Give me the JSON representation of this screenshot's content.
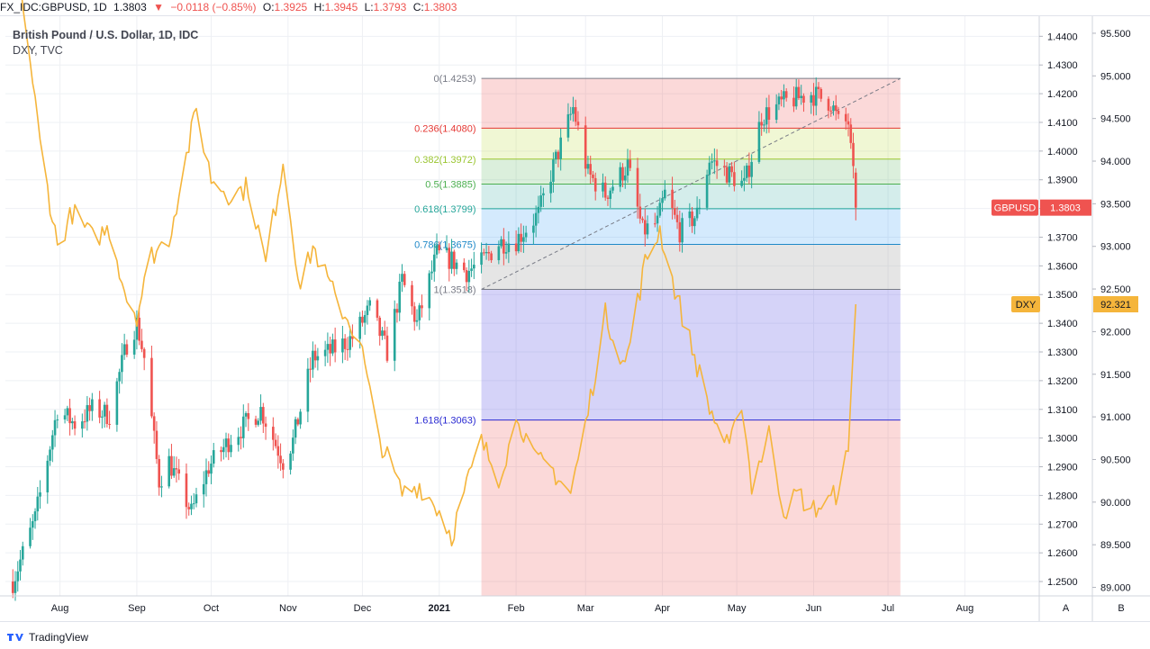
{
  "header": {
    "symbol": "FX_IDC:GBPUSD, 1D",
    "price": "1.3803",
    "change": "−0.0118 (−0.85%)",
    "open_label": "O:",
    "open": "1.3925",
    "high_label": "H:",
    "high": "1.3945",
    "low_label": "L:",
    "low": "1.3793",
    "close_label": "C:",
    "close": "1.3803"
  },
  "legend": {
    "line1": "British Pound / U.S. Dollar, 1D, IDC",
    "line2": "DXY, TVC"
  },
  "footer": {
    "brand": "TradingView"
  },
  "colors": {
    "up": "#26a69a",
    "down": "#ef5350",
    "dxy": "#f5b53b",
    "grid": "#eef0f4",
    "gbp_tag": "#ef5350",
    "dxy_tag": "#f5b53b"
  },
  "chart_data": {
    "type": "candlestick+line",
    "x_range": [
      "2020-07-10",
      "2021-08-31"
    ],
    "x_ticks": [
      {
        "date": "2020-08-01",
        "label": "Aug"
      },
      {
        "date": "2020-09-01",
        "label": "Sep"
      },
      {
        "date": "2020-10-01",
        "label": "Oct"
      },
      {
        "date": "2020-11-01",
        "label": "Nov"
      },
      {
        "date": "2020-12-01",
        "label": "Dec"
      },
      {
        "date": "2021-01-01",
        "label": "2021"
      },
      {
        "date": "2021-02-01",
        "label": "Feb"
      },
      {
        "date": "2021-03-01",
        "label": "Mar"
      },
      {
        "date": "2021-04-01",
        "label": "Apr"
      },
      {
        "date": "2021-05-01",
        "label": "May"
      },
      {
        "date": "2021-06-01",
        "label": "Jun"
      },
      {
        "date": "2021-07-01",
        "label": "Jul"
      },
      {
        "date": "2021-08-01",
        "label": "Aug"
      }
    ],
    "left_axis": {
      "series": "GBPUSD",
      "range": [
        1.245,
        1.447
      ],
      "ticks": [
        "1.2500",
        "1.2600",
        "1.2700",
        "1.2800",
        "1.2900",
        "1.3000",
        "1.3100",
        "1.3200",
        "1.3300",
        "1.3400",
        "1.3500",
        "1.3600",
        "1.3700",
        "1.3800",
        "1.3900",
        "1.4000",
        "1.4100",
        "1.4200",
        "1.4300",
        "1.4400"
      ],
      "scale_label": "A"
    },
    "right_axis": {
      "series": "DXY",
      "range": [
        88.9,
        95.7
      ],
      "ticks": [
        "89.000",
        "89.500",
        "90.000",
        "90.500",
        "91.000",
        "91.500",
        "92.000",
        "92.500",
        "93.000",
        "93.500",
        "94.000",
        "94.500",
        "95.000",
        "95.500"
      ],
      "scale_label": "B"
    },
    "gbpusd_anchors": [
      [
        "2020-07-13",
        1.25
      ],
      [
        "2020-07-22",
        1.272
      ],
      [
        "2020-07-31",
        1.31
      ],
      [
        "2020-08-07",
        1.305
      ],
      [
        "2020-08-14",
        1.31
      ],
      [
        "2020-08-21",
        1.308
      ],
      [
        "2020-08-28",
        1.333
      ],
      [
        "2020-09-01",
        1.34
      ],
      [
        "2020-09-04",
        1.328
      ],
      [
        "2020-09-10",
        1.285
      ],
      [
        "2020-09-14",
        1.292
      ],
      [
        "2020-09-23",
        1.274
      ],
      [
        "2020-09-30",
        1.29
      ],
      [
        "2020-10-09",
        1.3
      ],
      [
        "2020-10-21",
        1.31
      ],
      [
        "2020-10-30",
        1.292
      ],
      [
        "2020-11-03",
        1.299
      ],
      [
        "2020-11-11",
        1.328
      ],
      [
        "2020-11-18",
        1.33
      ],
      [
        "2020-11-27",
        1.335
      ],
      [
        "2020-12-04",
        1.345
      ],
      [
        "2020-12-11",
        1.33
      ],
      [
        "2020-12-17",
        1.355
      ],
      [
        "2020-12-23",
        1.34
      ],
      [
        "2020-12-31",
        1.364
      ],
      [
        "2021-01-06",
        1.362
      ],
      [
        "2021-01-12",
        1.358
      ],
      [
        "2021-01-18",
        1.361
      ],
      [
        "2021-01-25",
        1.368
      ],
      [
        "2021-02-01",
        1.369
      ],
      [
        "2021-02-10",
        1.378
      ],
      [
        "2021-02-15",
        1.392
      ],
      [
        "2021-02-24",
        1.415
      ],
      [
        "2021-03-02",
        1.392
      ],
      [
        "2021-03-09",
        1.385
      ],
      [
        "2021-03-18",
        1.395
      ],
      [
        "2021-03-24",
        1.372
      ],
      [
        "2021-03-30",
        1.375
      ],
      [
        "2021-04-02",
        1.385
      ],
      [
        "2021-04-08",
        1.372
      ],
      [
        "2021-04-15",
        1.378
      ],
      [
        "2021-04-20",
        1.397
      ],
      [
        "2021-04-28",
        1.392
      ],
      [
        "2021-05-04",
        1.388
      ],
      [
        "2021-05-07",
        1.398
      ],
      [
        "2021-05-11",
        1.412
      ],
      [
        "2021-05-20",
        1.417
      ],
      [
        "2021-05-31",
        1.42
      ],
      [
        "2021-06-08",
        1.417
      ],
      [
        "2021-06-11",
        1.41
      ],
      [
        "2021-06-15",
        1.41
      ],
      [
        "2021-06-16",
        1.4
      ],
      [
        "2021-06-17",
        1.391
      ],
      [
        "2021-06-18",
        1.3803
      ]
    ],
    "dxy_anchors": [
      [
        "2020-07-10",
        96.8
      ],
      [
        "2020-07-17",
        95.9
      ],
      [
        "2020-07-24",
        94.2
      ],
      [
        "2020-07-31",
        93.0
      ],
      [
        "2020-08-06",
        93.4
      ],
      [
        "2020-08-14",
        93.1
      ],
      [
        "2020-08-21",
        93.2
      ],
      [
        "2020-08-28",
        92.4
      ],
      [
        "2020-09-01",
        92.2
      ],
      [
        "2020-09-07",
        92.9
      ],
      [
        "2020-09-14",
        93.1
      ],
      [
        "2020-09-25",
        94.6
      ],
      [
        "2020-10-01",
        93.8
      ],
      [
        "2020-10-09",
        93.6
      ],
      [
        "2020-10-16",
        93.7
      ],
      [
        "2020-10-23",
        92.8
      ],
      [
        "2020-10-30",
        94.0
      ],
      [
        "2020-11-06",
        92.5
      ],
      [
        "2020-11-11",
        93.0
      ],
      [
        "2020-11-20",
        92.4
      ],
      [
        "2020-11-30",
        91.9
      ],
      [
        "2020-12-07",
        90.8
      ],
      [
        "2020-12-17",
        90.1
      ],
      [
        "2020-12-24",
        90.2
      ],
      [
        "2021-01-01",
        89.9
      ],
      [
        "2021-01-06",
        89.6
      ],
      [
        "2021-01-12",
        90.2
      ],
      [
        "2021-01-18",
        90.7
      ],
      [
        "2021-01-25",
        90.3
      ],
      [
        "2021-02-02",
        91.0
      ],
      [
        "2021-02-08",
        90.5
      ],
      [
        "2021-02-15",
        90.4
      ],
      [
        "2021-02-23",
        90.1
      ],
      [
        "2021-03-01",
        90.9
      ],
      [
        "2021-03-09",
        92.2
      ],
      [
        "2021-03-17",
        91.6
      ],
      [
        "2021-03-25",
        92.8
      ],
      [
        "2021-03-31",
        93.2
      ],
      [
        "2021-04-05",
        92.6
      ],
      [
        "2021-04-13",
        91.8
      ],
      [
        "2021-04-20",
        91.1
      ],
      [
        "2021-04-28",
        90.6
      ],
      [
        "2021-05-03",
        91.2
      ],
      [
        "2021-05-07",
        90.2
      ],
      [
        "2021-05-14",
        90.8
      ],
      [
        "2021-05-20",
        89.9
      ],
      [
        "2021-05-26",
        90.1
      ],
      [
        "2021-05-31",
        89.9
      ],
      [
        "2021-06-07",
        90.0
      ],
      [
        "2021-06-10",
        90.1
      ],
      [
        "2021-06-14",
        90.5
      ],
      [
        "2021-06-15",
        90.5
      ],
      [
        "2021-06-16",
        91.2
      ],
      [
        "2021-06-17",
        91.9
      ],
      [
        "2021-06-18",
        92.321
      ]
    ],
    "fibonacci": {
      "start_date": "2021-01-18",
      "end_date": "2021-07-06",
      "low": 1.3518,
      "high": 1.4253,
      "levels": [
        {
          "label": "0(1.4253)",
          "ratio": 0,
          "price": 1.4253,
          "color": "#787b86",
          "fill": "rgba(239,83,80,0.22)"
        },
        {
          "label": "0.236(1.4080)",
          "ratio": 0.236,
          "price": 1.408,
          "color": "#e53935",
          "fill": "rgba(187,217,60,0.22)"
        },
        {
          "label": "0.382(1.3972)",
          "ratio": 0.382,
          "price": 1.3972,
          "color": "#9ac530",
          "fill": "rgba(76,175,80,0.20)"
        },
        {
          "label": "0.5(1.3885)",
          "ratio": 0.5,
          "price": 1.3885,
          "color": "#4caf50",
          "fill": "rgba(38,166,154,0.20)"
        },
        {
          "label": "0.618(1.3799)",
          "ratio": 0.618,
          "price": 1.3799,
          "color": "#26a69a",
          "fill": "rgba(41,150,243,0.20)"
        },
        {
          "label": "0.786(1.3675)",
          "ratio": 0.786,
          "price": 1.3675,
          "color": "#1e88c8",
          "fill": "rgba(150,150,150,0.25)"
        },
        {
          "label": "1(1.3518)",
          "ratio": 1,
          "price": 1.3518,
          "color": "#787b86",
          "fill": "rgba(103,96,230,0.28)"
        },
        {
          "label": "1.618(1.3063)",
          "ratio": 1.618,
          "price": 1.3063,
          "color": "#2a2ad2",
          "fill": "rgba(239,83,80,0.22)"
        }
      ],
      "bottom_extent": 1.245
    },
    "trendline": {
      "from": [
        "2021-01-18",
        1.3518
      ],
      "to": [
        "2021-07-06",
        1.4253
      ]
    },
    "last_price_tags": [
      {
        "name": "GBPUSD",
        "value": "1.3803"
      },
      {
        "name": "DXY",
        "value": "92.321"
      }
    ]
  }
}
